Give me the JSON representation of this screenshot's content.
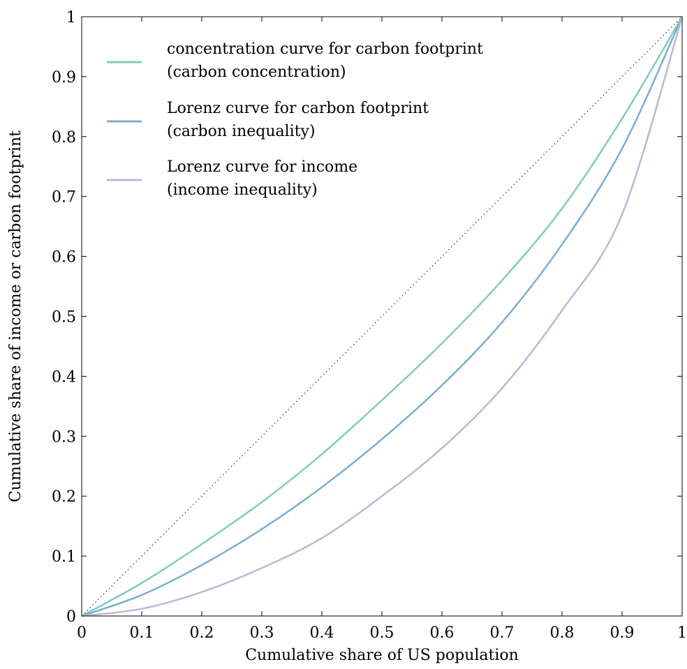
{
  "chart_data": {
    "type": "line",
    "xlabel": "Cumulative share of US population",
    "ylabel": "Cumulative share of income or carbon footprint",
    "xlim": [
      0,
      1
    ],
    "ylim": [
      0,
      1
    ],
    "grid": false,
    "legend_position": "top-left",
    "x_ticks": [
      "0",
      "0.1",
      "0.2",
      "0.3",
      "0.4",
      "0.5",
      "0.6",
      "0.7",
      "0.8",
      "0.9",
      "1"
    ],
    "y_ticks": [
      "0",
      "0.1",
      "0.2",
      "0.3",
      "0.4",
      "0.5",
      "0.6",
      "0.7",
      "0.8",
      "0.9",
      "1"
    ],
    "x": [
      0,
      0.1,
      0.2,
      0.3,
      0.4,
      0.5,
      0.6,
      0.7,
      0.8,
      0.9,
      1
    ],
    "reference_line": {
      "style": "dotted",
      "color": "#000000",
      "x": [
        0,
        1
      ],
      "y": [
        0,
        1
      ]
    },
    "series": [
      {
        "name": "concentration curve for carbon footprint",
        "name_line2": "(carbon concentration)",
        "color": "#7fcdbb",
        "values": [
          0,
          0.055,
          0.12,
          0.19,
          0.27,
          0.36,
          0.455,
          0.56,
          0.68,
          0.83,
          1
        ]
      },
      {
        "name": "Lorenz curve for carbon footprint",
        "name_line2": "(carbon inequality)",
        "color": "#7aaed0",
        "values": [
          0,
          0.035,
          0.085,
          0.145,
          0.215,
          0.295,
          0.385,
          0.49,
          0.62,
          0.78,
          1
        ]
      },
      {
        "name": "Lorenz curve for income",
        "name_line2": "(income inequality)",
        "color": "#b8b8d8",
        "values": [
          0,
          0.012,
          0.04,
          0.08,
          0.13,
          0.2,
          0.28,
          0.38,
          0.51,
          0.67,
          1
        ]
      }
    ]
  }
}
